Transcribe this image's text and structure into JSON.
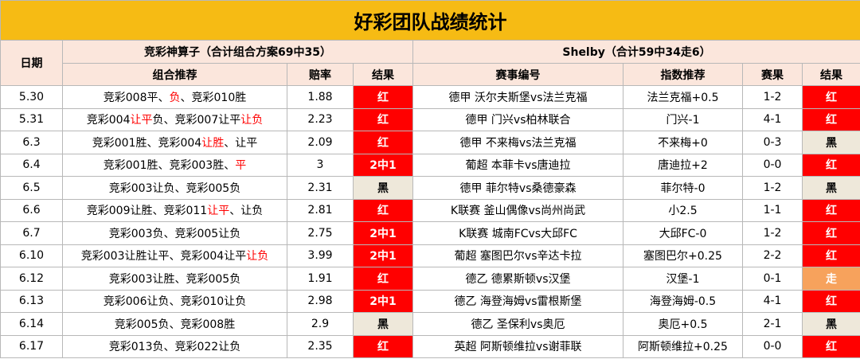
{
  "title": "好彩团队战绩统计",
  "headers": {
    "date": "日期",
    "group_a": "竞彩神算子（合计组合方案69中35）",
    "group_b": "Shelby（合计59中34走6）",
    "cols_a": [
      "组合推荐",
      "赔率",
      "结果"
    ],
    "cols_b": [
      "赛事编号",
      "指数推荐",
      "赛果",
      "结果"
    ]
  },
  "rows": [
    {
      "date": "5.30",
      "combo": [
        {
          "text": "竞彩008平、"
        },
        {
          "text": "负",
          "color": "#ff0000"
        },
        {
          "text": "、竞彩010胜"
        }
      ],
      "odds": "1.88",
      "result_a": {
        "text": "红",
        "bg": "#ff0000",
        "fg": "#ffffff"
      },
      "match": "德甲 沃尔夫斯堡vs法兰克福",
      "pick": "法兰克福+0.5",
      "score": "1-2",
      "result_b": {
        "text": "红",
        "bg": "#ff0000",
        "fg": "#ffffff"
      }
    },
    {
      "date": "5.31",
      "combo": [
        {
          "text": "竞彩004"
        },
        {
          "text": "让平",
          "color": "#ff0000"
        },
        {
          "text": "负、竞彩007让平"
        },
        {
          "text": "让负",
          "color": "#ff0000"
        }
      ],
      "odds": "2.23",
      "result_a": {
        "text": "红",
        "bg": "#ff0000",
        "fg": "#ffffff"
      },
      "match": "德甲 门兴vs柏林联合",
      "pick": "门兴-1",
      "score": "4-1",
      "result_b": {
        "text": "红",
        "bg": "#ff0000",
        "fg": "#ffffff"
      }
    },
    {
      "date": "6.3",
      "combo": [
        {
          "text": "竞彩001胜、竞彩004"
        },
        {
          "text": "让胜",
          "color": "#ff0000"
        },
        {
          "text": "、让平"
        }
      ],
      "odds": "2.09",
      "result_a": {
        "text": "红",
        "bg": "#ff0000",
        "fg": "#ffffff"
      },
      "match": "德甲 不来梅vs法兰克福",
      "pick": "不来梅+0",
      "score": "0-3",
      "result_b": {
        "text": "黑",
        "bg": "#eee8da",
        "fg": "#000000"
      }
    },
    {
      "date": "6.4",
      "combo": [
        {
          "text": "竞彩001胜、竞彩003胜、"
        },
        {
          "text": "平",
          "color": "#ff0000"
        }
      ],
      "odds": "3",
      "result_a": {
        "text": "2中1",
        "bg": "#ff0000",
        "fg": "#ffffff"
      },
      "match": "葡超 本菲卡vs唐迪拉",
      "pick": "唐迪拉+2",
      "score": "0-0",
      "result_b": {
        "text": "红",
        "bg": "#ff0000",
        "fg": "#ffffff"
      }
    },
    {
      "date": "6.5",
      "combo": [
        {
          "text": "竞彩003让负、竞彩005负"
        }
      ],
      "odds": "2.31",
      "result_a": {
        "text": "黑",
        "bg": "#eee8da",
        "fg": "#000000"
      },
      "match": "德甲 菲尔特vs桑德豪森",
      "pick": "菲尔特-0",
      "score": "1-2",
      "result_b": {
        "text": "黑",
        "bg": "#eee8da",
        "fg": "#000000"
      }
    },
    {
      "date": "6.6",
      "combo": [
        {
          "text": "竞彩009让胜、竞彩011"
        },
        {
          "text": "让平",
          "color": "#ff0000"
        },
        {
          "text": "、让负"
        }
      ],
      "odds": "2.81",
      "result_a": {
        "text": "红",
        "bg": "#ff0000",
        "fg": "#ffffff"
      },
      "match": "K联赛 釜山偶像vs尚州尚武",
      "pick": "小2.5",
      "score": "1-1",
      "result_b": {
        "text": "红",
        "bg": "#ff0000",
        "fg": "#ffffff"
      }
    },
    {
      "date": "6.7",
      "combo": [
        {
          "text": "竞彩003负、竞彩005让负"
        }
      ],
      "odds": "2.75",
      "result_a": {
        "text": "2中1",
        "bg": "#ff0000",
        "fg": "#ffffff"
      },
      "match": "K联赛 城南FCvs大邱FC",
      "pick": "大邱FC-0",
      "score": "1-2",
      "result_b": {
        "text": "红",
        "bg": "#ff0000",
        "fg": "#ffffff"
      }
    },
    {
      "date": "6.10",
      "combo": [
        {
          "text": "竞彩003让胜让平、竞彩004让平"
        },
        {
          "text": "让负",
          "color": "#ff0000"
        }
      ],
      "odds": "3.99",
      "result_a": {
        "text": "2中1",
        "bg": "#ff0000",
        "fg": "#ffffff"
      },
      "match": "葡超 塞图巴尔vs辛达卡拉",
      "pick": "塞图巴尔+0.25",
      "score": "2-2",
      "result_b": {
        "text": "红",
        "bg": "#ff0000",
        "fg": "#ffffff"
      }
    },
    {
      "date": "6.12",
      "combo": [
        {
          "text": "竞彩003让胜、竞彩005负"
        }
      ],
      "odds": "1.91",
      "result_a": {
        "text": "红",
        "bg": "#ff0000",
        "fg": "#ffffff"
      },
      "match": "德乙 德累斯顿vs汉堡",
      "pick": "汉堡-1",
      "score": "0-1",
      "result_b": {
        "text": "走",
        "bg": "#f7a25c",
        "fg": "#ffffff"
      }
    },
    {
      "date": "6.13",
      "combo": [
        {
          "text": "竞彩006让负、竞彩010让负"
        }
      ],
      "odds": "2.98",
      "result_a": {
        "text": "2中1",
        "bg": "#ff0000",
        "fg": "#ffffff"
      },
      "match": "德乙 海登海姆vs雷根斯堡",
      "pick": "海登海姆-0.5",
      "score": "4-1",
      "result_b": {
        "text": "红",
        "bg": "#ff0000",
        "fg": "#ffffff"
      }
    },
    {
      "date": "6.14",
      "combo": [
        {
          "text": "竞彩005负、竞彩008胜"
        }
      ],
      "odds": "2.9",
      "result_a": {
        "text": "黑",
        "bg": "#eee8da",
        "fg": "#000000"
      },
      "match": "德乙 圣保利vs奥厄",
      "pick": "奥厄+0.5",
      "score": "2-1",
      "result_b": {
        "text": "黑",
        "bg": "#eee8da",
        "fg": "#000000"
      }
    },
    {
      "date": "6.17",
      "combo": [
        {
          "text": "竞彩013负、竞彩022让负"
        }
      ],
      "odds": "2.35",
      "result_a": {
        "text": "红",
        "bg": "#ff0000",
        "fg": "#ffffff"
      },
      "match": "英超 阿斯顿维拉vs谢菲联",
      "pick": "阿斯顿维拉+0.25",
      "score": "0-0",
      "result_b": {
        "text": "红",
        "bg": "#ff0000",
        "fg": "#ffffff"
      }
    }
  ]
}
